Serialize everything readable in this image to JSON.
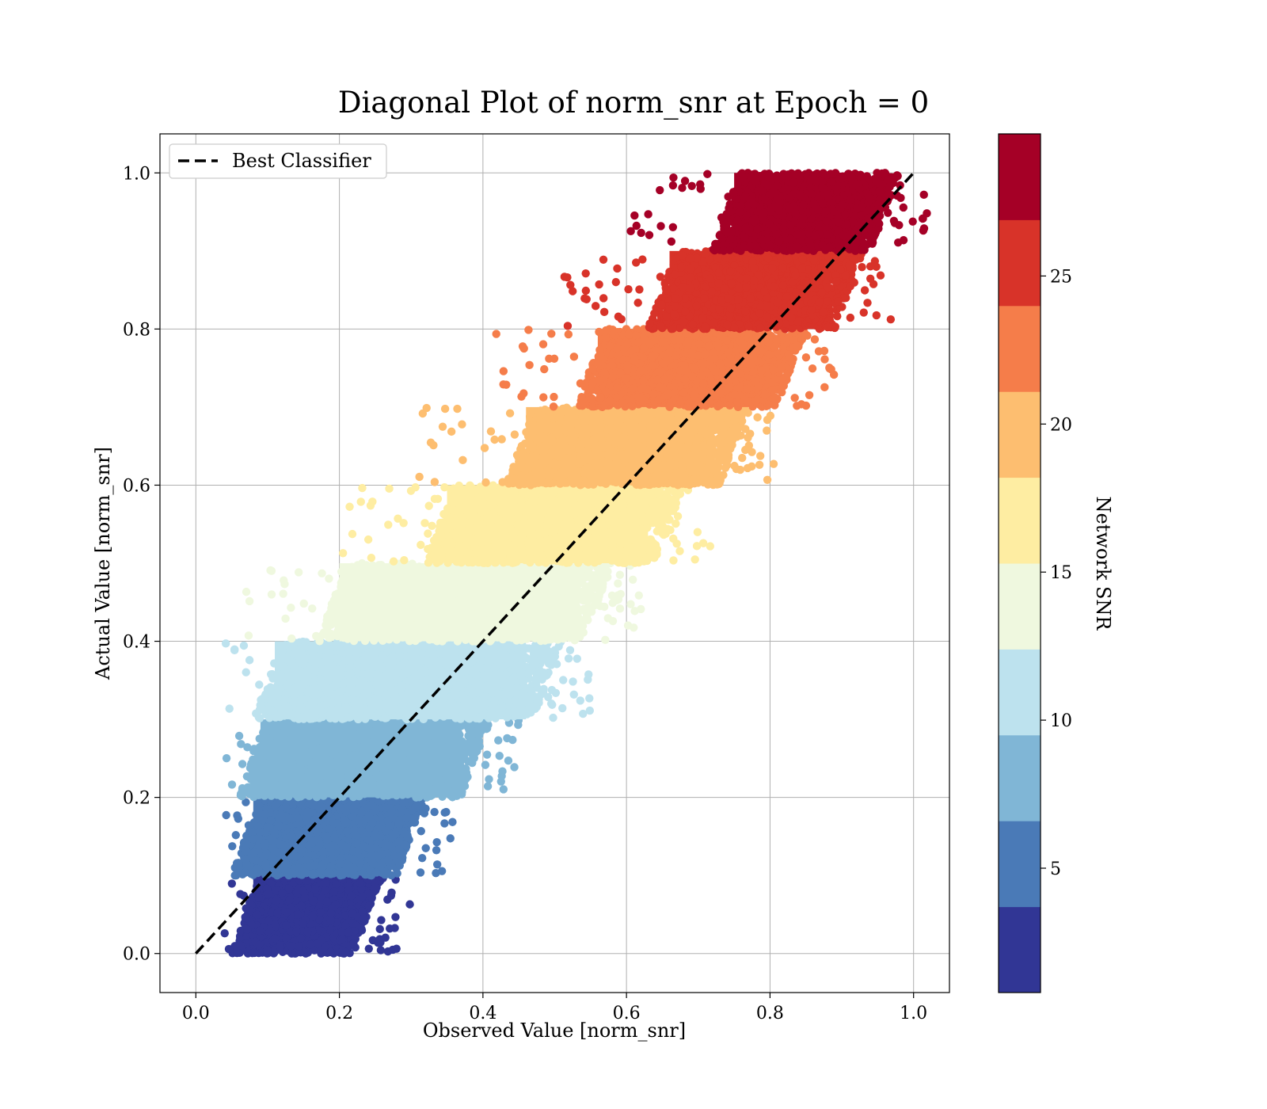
{
  "chart_data": {
    "type": "scatter",
    "title": "Diagonal Plot of norm_snr at Epoch = 0",
    "xlabel": "Observed Value [norm_snr]",
    "ylabel": "Actual Value [norm_snr]",
    "xlim": [
      -0.05,
      1.05
    ],
    "ylim": [
      -0.05,
      1.05
    ],
    "xticks": [
      "0.0",
      "0.2",
      "0.4",
      "0.6",
      "0.8",
      "1.0"
    ],
    "yticks": [
      "0.0",
      "0.2",
      "0.4",
      "0.6",
      "0.8",
      "1.0"
    ],
    "grid": true,
    "legend": {
      "placement": "top-left",
      "entries": [
        "Best Classifier"
      ]
    },
    "reference_line": {
      "name": "Best Classifier",
      "style": "dashed",
      "color": "#000000",
      "x": [
        0,
        1
      ],
      "y": [
        0,
        1
      ]
    },
    "colorbar": {
      "label": "Network SNR",
      "range": [
        0.8,
        29.8
      ],
      "ticks": [
        "5",
        "10",
        "15",
        "20",
        "25"
      ],
      "tick_values": [
        5,
        10,
        15,
        20,
        25
      ],
      "colors": [
        "#313695",
        "#4a7ab7",
        "#80b6d6",
        "#bde2ee",
        "#eff8df",
        "#feeda2",
        "#fdbe70",
        "#f57d4a",
        "#d83329",
        "#a50026"
      ]
    },
    "bands": [
      {
        "actual": [
          0.0,
          0.1
        ],
        "observed": [
          0.05,
          0.26
        ],
        "snr_color": "#313695"
      },
      {
        "actual": [
          0.1,
          0.2
        ],
        "observed": [
          0.05,
          0.32
        ],
        "snr_color": "#4a7ab7"
      },
      {
        "actual": [
          0.2,
          0.3
        ],
        "observed": [
          0.06,
          0.41
        ],
        "snr_color": "#80b6d6"
      },
      {
        "actual": [
          0.3,
          0.4
        ],
        "observed": [
          0.08,
          0.51
        ],
        "snr_color": "#bde2ee"
      },
      {
        "actual": [
          0.4,
          0.5
        ],
        "observed": [
          0.17,
          0.58
        ],
        "snr_color": "#eff8df"
      },
      {
        "actual": [
          0.5,
          0.6
        ],
        "observed": [
          0.32,
          0.68
        ],
        "snr_color": "#feeda2"
      },
      {
        "actual": [
          0.6,
          0.7
        ],
        "observed": [
          0.43,
          0.77
        ],
        "snr_color": "#fdbe70"
      },
      {
        "actual": [
          0.7,
          0.8
        ],
        "observed": [
          0.53,
          0.85
        ],
        "snr_color": "#f57d4a"
      },
      {
        "actual": [
          0.8,
          0.9
        ],
        "observed": [
          0.63,
          0.93
        ],
        "snr_color": "#d83329"
      },
      {
        "actual": [
          0.9,
          1.0
        ],
        "observed": [
          0.72,
          0.98
        ],
        "snr_color": "#a50026"
      }
    ]
  }
}
